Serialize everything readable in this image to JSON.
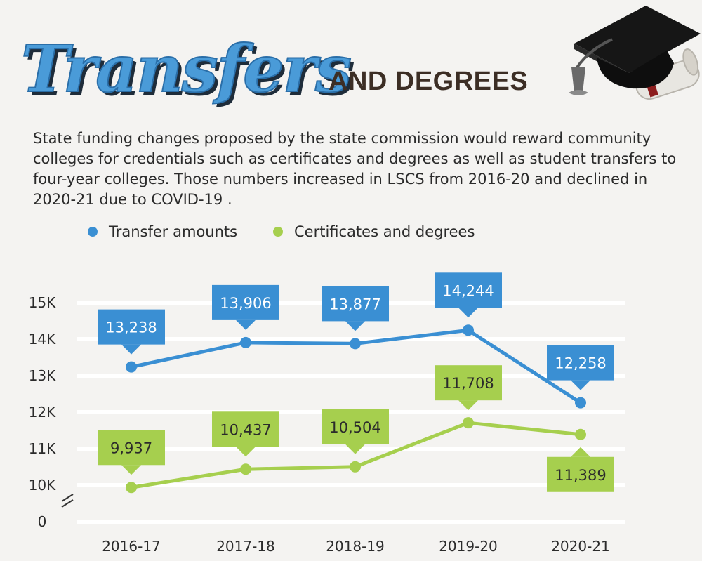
{
  "title": {
    "main": "Transfers",
    "sub": "AND DEGREES"
  },
  "intro": "State funding changes proposed by the state commission would reward community colleges for credentials such as certificates and degrees as well as student transfers to four-year colleges. Those numbers increased in LSCS from 2016-20 and declined in 2020-21 due to COVID-19 .",
  "colors": {
    "transfer": "#3a8fd3",
    "certificates": "#a6cf4e",
    "title_fill": "#4a9bd8",
    "title_sub": "#3c2e25"
  },
  "icons": [
    "graduation-cap-icon",
    "diploma-scroll-icon"
  ],
  "chart_data": {
    "type": "line",
    "categories": [
      "2016-17",
      "2017-18",
      "2018-19",
      "2019-20",
      "2020-21"
    ],
    "series": [
      {
        "name": "Transfer amounts",
        "color": "#3a8fd3",
        "values": [
          13238,
          13906,
          13877,
          14244,
          12258
        ],
        "labels": [
          "13,238",
          "13,906",
          "13,877",
          "14,244",
          "12,258"
        ]
      },
      {
        "name": "Certificates and degrees",
        "color": "#a6cf4e",
        "values": [
          9937,
          10437,
          10504,
          11708,
          11389
        ],
        "labels": [
          "9,937",
          "10,437",
          "10,504",
          "11,708",
          "11,389"
        ]
      }
    ],
    "y_ticks": [
      {
        "value": 15000,
        "label": "15K"
      },
      {
        "value": 14000,
        "label": "14K"
      },
      {
        "value": 13000,
        "label": "13K"
      },
      {
        "value": 12000,
        "label": "12K"
      },
      {
        "value": 11000,
        "label": "11K"
      },
      {
        "value": 10000,
        "label": "10K"
      },
      {
        "value": 0,
        "label": "0"
      }
    ],
    "ylim": [
      9000,
      15000
    ],
    "axis_break": true,
    "grid": true,
    "legend": "top"
  }
}
